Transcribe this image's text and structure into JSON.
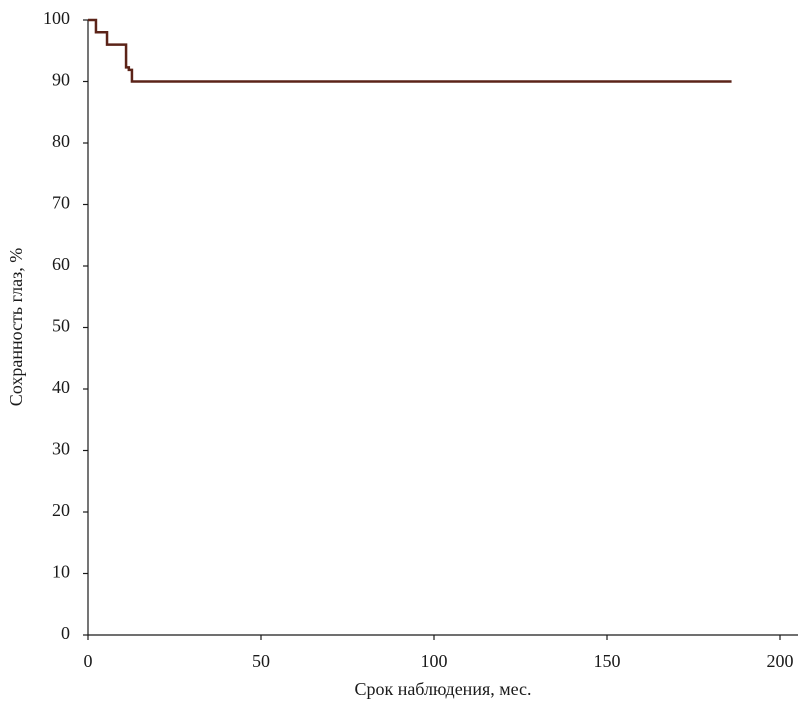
{
  "chart_data": {
    "type": "line",
    "drawstyle": "steps-post",
    "xlabel": "Срок наблюдения, мес.",
    "ylabel": "Сохранность глаз, %",
    "xlim": [
      0,
      200
    ],
    "xticks": [
      0,
      50,
      100,
      150,
      200
    ],
    "ylim": [
      0,
      100
    ],
    "yticks": [
      0,
      10,
      20,
      30,
      40,
      50,
      60,
      70,
      80,
      90,
      100
    ],
    "series": [
      {
        "color": "#5b2318",
        "x": [
          0,
          2.3,
          5.5,
          11,
          11.8,
          12.7,
          186
        ],
        "values": [
          100,
          98,
          96,
          92.3,
          91.9,
          90,
          90
        ]
      }
    ]
  }
}
